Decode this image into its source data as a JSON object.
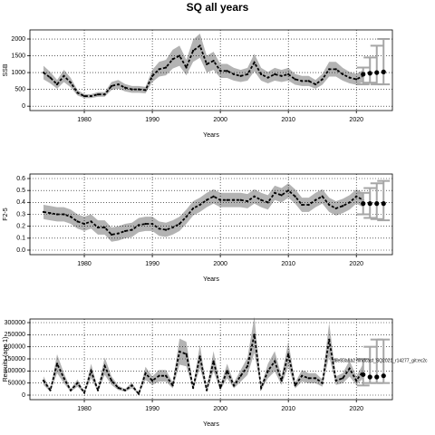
{
  "title": "SQ all years",
  "chart_data": [
    {
      "type": "line",
      "ylabel": "SSB",
      "xlabel": "Years",
      "x": [
        1974,
        1975,
        1976,
        1977,
        1978,
        1979,
        1980,
        1981,
        1982,
        1983,
        1984,
        1985,
        1986,
        1987,
        1988,
        1989,
        1990,
        1991,
        1992,
        1993,
        1994,
        1995,
        1996,
        1997,
        1998,
        1999,
        2000,
        2001,
        2002,
        2003,
        2004,
        2005,
        2006,
        2007,
        2008,
        2009,
        2010,
        2011,
        2012,
        2013,
        2014,
        2015,
        2016,
        2017,
        2018,
        2019,
        2020,
        2021
      ],
      "values": [
        1000,
        850,
        650,
        900,
        700,
        400,
        300,
        300,
        350,
        350,
        600,
        650,
        550,
        500,
        500,
        480,
        900,
        1100,
        1150,
        1400,
        1500,
        1150,
        1650,
        1800,
        1250,
        1350,
        1050,
        1050,
        950,
        900,
        950,
        1300,
        950,
        850,
        950,
        900,
        950,
        800,
        750,
        750,
        650,
        800,
        1100,
        1100,
        950,
        850,
        800,
        900
      ],
      "lower": [
        800,
        680,
        520,
        720,
        560,
        320,
        240,
        240,
        280,
        280,
        480,
        520,
        440,
        400,
        400,
        384,
        720,
        880,
        920,
        1120,
        1200,
        920,
        1320,
        1440,
        1000,
        1080,
        840,
        840,
        760,
        720,
        760,
        1040,
        760,
        680,
        760,
        720,
        760,
        640,
        600,
        600,
        520,
        640,
        880,
        880,
        760,
        680,
        640,
        720
      ],
      "upper": [
        1200,
        1020,
        780,
        1080,
        840,
        480,
        360,
        360,
        420,
        420,
        720,
        780,
        660,
        600,
        600,
        576,
        1080,
        1320,
        1380,
        1680,
        1800,
        1380,
        1980,
        2160,
        1500,
        1620,
        1260,
        1260,
        1140,
        1080,
        1140,
        1560,
        1140,
        1020,
        1140,
        1080,
        1140,
        960,
        900,
        900,
        780,
        960,
        1320,
        1320,
        1140,
        1020,
        960,
        1080
      ],
      "projection": {
        "x": [
          2021,
          2022,
          2023,
          2024
        ],
        "values": [
          950,
          980,
          1000,
          1020
        ],
        "low": [
          650,
          700,
          650,
          650
        ],
        "high": [
          1150,
          1450,
          1800,
          2000
        ]
      },
      "color": "#000000",
      "band_color": "#b3b3b3",
      "bar_color": "#a6a6a6",
      "xlim": [
        1972,
        2025.3
      ],
      "xticks": [
        1980,
        1990,
        2000,
        2010,
        2020
      ],
      "ylim": [
        -130,
        2270
      ],
      "yticks": [
        0,
        500,
        1000,
        1500,
        2000
      ],
      "grid": true
    },
    {
      "type": "line",
      "ylabel": "F2-5",
      "xlabel": "Years",
      "x": [
        1974,
        1975,
        1976,
        1977,
        1978,
        1979,
        1980,
        1981,
        1982,
        1983,
        1984,
        1985,
        1986,
        1987,
        1988,
        1989,
        1990,
        1991,
        1992,
        1993,
        1994,
        1995,
        1996,
        1997,
        1998,
        1999,
        2000,
        2001,
        2002,
        2003,
        2004,
        2005,
        2006,
        2007,
        2008,
        2009,
        2010,
        2011,
        2012,
        2013,
        2014,
        2015,
        2016,
        2017,
        2018,
        2019,
        2020,
        2021
      ],
      "values": [
        0.32,
        0.31,
        0.3,
        0.3,
        0.28,
        0.24,
        0.22,
        0.24,
        0.19,
        0.19,
        0.13,
        0.14,
        0.16,
        0.17,
        0.21,
        0.22,
        0.22,
        0.18,
        0.17,
        0.19,
        0.22,
        0.28,
        0.35,
        0.38,
        0.42,
        0.45,
        0.42,
        0.42,
        0.42,
        0.42,
        0.41,
        0.45,
        0.42,
        0.4,
        0.48,
        0.46,
        0.5,
        0.45,
        0.38,
        0.38,
        0.42,
        0.45,
        0.38,
        0.35,
        0.37,
        0.4,
        0.45,
        0.42
      ],
      "lower": [
        0.26,
        0.25,
        0.24,
        0.24,
        0.22,
        0.18,
        0.16,
        0.18,
        0.13,
        0.13,
        0.07,
        0.08,
        0.1,
        0.11,
        0.15,
        0.16,
        0.16,
        0.12,
        0.11,
        0.13,
        0.16,
        0.22,
        0.29,
        0.32,
        0.36,
        0.39,
        0.36,
        0.36,
        0.36,
        0.36,
        0.35,
        0.39,
        0.36,
        0.34,
        0.42,
        0.4,
        0.44,
        0.39,
        0.32,
        0.32,
        0.36,
        0.39,
        0.32,
        0.29,
        0.31,
        0.34,
        0.39,
        0.36
      ],
      "upper": [
        0.38,
        0.37,
        0.36,
        0.36,
        0.34,
        0.3,
        0.28,
        0.3,
        0.25,
        0.25,
        0.19,
        0.2,
        0.22,
        0.23,
        0.27,
        0.28,
        0.28,
        0.24,
        0.23,
        0.25,
        0.28,
        0.34,
        0.41,
        0.44,
        0.48,
        0.51,
        0.48,
        0.48,
        0.48,
        0.48,
        0.47,
        0.51,
        0.48,
        0.46,
        0.54,
        0.52,
        0.56,
        0.51,
        0.44,
        0.44,
        0.48,
        0.51,
        0.44,
        0.41,
        0.43,
        0.46,
        0.51,
        0.48
      ],
      "projection": {
        "x": [
          2021,
          2022,
          2023,
          2024
        ],
        "values": [
          0.39,
          0.39,
          0.39,
          0.39
        ],
        "low": [
          0.3,
          0.27,
          0.26,
          0.25
        ],
        "high": [
          0.48,
          0.52,
          0.56,
          0.58
        ]
      },
      "color": "#000000",
      "band_color": "#b3b3b3",
      "bar_color": "#a6a6a6",
      "xlim": [
        1972,
        2025.3
      ],
      "xticks": [
        1980,
        1990,
        2000,
        2010,
        2020
      ],
      "ylim": [
        -0.038,
        0.638
      ],
      "yticks": [
        {
          "value": 0,
          "label": "0.0"
        },
        0.1,
        0.2,
        0.3,
        0.4,
        0.5,
        0.6
      ],
      "grid": true
    },
    {
      "type": "line",
      "ylabel": "Recruits (age 1)",
      "xlabel": "Years",
      "annotation": "d8e83a8a2 hindcast_SQ2021_r14277_git:ec2c",
      "x": [
        1974,
        1975,
        1976,
        1977,
        1978,
        1979,
        1980,
        1981,
        1982,
        1983,
        1984,
        1985,
        1986,
        1987,
        1988,
        1989,
        1990,
        1991,
        1992,
        1993,
        1994,
        1995,
        1996,
        1997,
        1998,
        1999,
        2000,
        2001,
        2002,
        2003,
        2004,
        2005,
        2006,
        2007,
        2008,
        2009,
        2010,
        2011,
        2012,
        2013,
        2014,
        2015,
        2016,
        2017,
        2018,
        2019,
        2020,
        2021
      ],
      "values": [
        60000,
        20000,
        130000,
        70000,
        20000,
        50000,
        10000,
        100000,
        20000,
        120000,
        60000,
        30000,
        20000,
        40000,
        5000,
        90000,
        60000,
        80000,
        80000,
        40000,
        180000,
        170000,
        30000,
        160000,
        20000,
        140000,
        30000,
        100000,
        40000,
        80000,
        120000,
        250000,
        30000,
        100000,
        140000,
        60000,
        170000,
        40000,
        80000,
        70000,
        70000,
        50000,
        230000,
        60000,
        70000,
        110000,
        60000,
        100000
      ],
      "lower": [
        42000,
        14000,
        91000,
        49000,
        14000,
        35000,
        7000,
        70000,
        14000,
        84000,
        42000,
        21000,
        14000,
        28000,
        3500,
        63000,
        42000,
        56000,
        56000,
        28000,
        126000,
        119000,
        21000,
        112000,
        14000,
        98000,
        21000,
        70000,
        28000,
        56000,
        84000,
        175000,
        21000,
        70000,
        98000,
        42000,
        119000,
        28000,
        56000,
        49000,
        49000,
        35000,
        161000,
        42000,
        49000,
        77000,
        42000,
        70000
      ],
      "upper": [
        78000,
        26000,
        169000,
        91000,
        26000,
        65000,
        13000,
        130000,
        26000,
        156000,
        78000,
        39000,
        26000,
        52000,
        6500,
        117000,
        78000,
        104000,
        104000,
        52000,
        234000,
        221000,
        39000,
        208000,
        26000,
        182000,
        39000,
        130000,
        52000,
        104000,
        156000,
        325000,
        39000,
        130000,
        182000,
        78000,
        221000,
        52000,
        104000,
        91000,
        91000,
        65000,
        299000,
        78000,
        91000,
        143000,
        78000,
        130000
      ],
      "projection": {
        "x": [
          2021,
          2022,
          2023,
          2024
        ],
        "values": [
          85000,
          75000,
          75000,
          80000
        ],
        "low": [
          40000,
          50000,
          50000,
          50000
        ],
        "high": [
          150000,
          200000,
          230000,
          230000
        ]
      },
      "color": "#000000",
      "band_color": "#b3b3b3",
      "bar_color": "#a6a6a6",
      "xlim": [
        1972,
        2025.3
      ],
      "xticks": [
        1980,
        1990,
        2000,
        2010,
        2020
      ],
      "ylim": [
        -18750,
        315000
      ],
      "yticks": [
        0,
        50000,
        100000,
        150000,
        200000,
        250000,
        300000
      ],
      "grid": true
    }
  ]
}
